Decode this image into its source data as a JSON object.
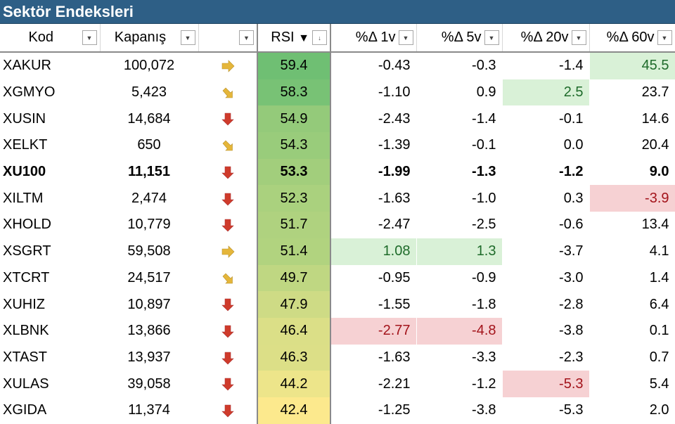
{
  "title": "Sektör Endeksleri",
  "headers": {
    "kod": "Kod",
    "kapanis": "Kapanış",
    "trend": "",
    "rsi": "RSI",
    "d1": "%Δ 1v",
    "d5": "%Δ 5v",
    "d20": "%Δ 20v",
    "d60": "%Δ 60v"
  },
  "icons": {
    "dropdown": "chevron-down-icon",
    "sort_desc": "sort-descending-icon",
    "trend_down": "arrow-down-icon",
    "trend_right": "arrow-right-icon",
    "trend_down_right": "arrow-down-right-icon"
  },
  "colors": {
    "header_bg": "#2e5f86",
    "positive_bg": "#d9f1d7",
    "positive_text": "#1e6b2a",
    "negative_bg": "#f6d1d3",
    "negative_text": "#a3141b",
    "arrow_red": "#cf3b2b",
    "arrow_yellow": "#e5b63a",
    "rsi_high": "#6fbf73",
    "rsi_low": "#fce98d"
  },
  "rows": [
    {
      "kod": "XAKUR",
      "kapanis": "100,072",
      "trend": "right",
      "rsi": "59.4",
      "d1": "-0.43",
      "d5": "-0.3",
      "d20": "-1.4",
      "d60": "45.5",
      "hl": {
        "d60": "pos"
      }
    },
    {
      "kod": "XGMYO",
      "kapanis": "5,423",
      "trend": "down-right",
      "rsi": "58.3",
      "d1": "-1.10",
      "d5": "0.9",
      "d20": "2.5",
      "d60": "23.7",
      "hl": {
        "d20": "pos"
      }
    },
    {
      "kod": "XUSIN",
      "kapanis": "14,684",
      "trend": "down",
      "rsi": "54.9",
      "d1": "-2.43",
      "d5": "-1.4",
      "d20": "-0.1",
      "d60": "14.6",
      "hl": {}
    },
    {
      "kod": "XELKT",
      "kapanis": "650",
      "trend": "down-right",
      "rsi": "54.3",
      "d1": "-1.39",
      "d5": "-0.1",
      "d20": "0.0",
      "d60": "20.4",
      "hl": {}
    },
    {
      "kod": "XU100",
      "kapanis": "11,151",
      "trend": "down",
      "rsi": "53.3",
      "d1": "-1.99",
      "d5": "-1.3",
      "d20": "-1.2",
      "d60": "9.0",
      "hl": {},
      "bold": true
    },
    {
      "kod": "XILTM",
      "kapanis": "2,474",
      "trend": "down",
      "rsi": "52.3",
      "d1": "-1.63",
      "d5": "-1.0",
      "d20": "0.3",
      "d60": "-3.9",
      "hl": {
        "d60": "neg"
      }
    },
    {
      "kod": "XHOLD",
      "kapanis": "10,779",
      "trend": "down",
      "rsi": "51.7",
      "d1": "-2.47",
      "d5": "-2.5",
      "d20": "-0.6",
      "d60": "13.4",
      "hl": {}
    },
    {
      "kod": "XSGRT",
      "kapanis": "59,508",
      "trend": "right",
      "rsi": "51.4",
      "d1": "1.08",
      "d5": "1.3",
      "d20": "-3.7",
      "d60": "4.1",
      "hl": {
        "d1": "pos",
        "d5": "pos"
      }
    },
    {
      "kod": "XTCRT",
      "kapanis": "24,517",
      "trend": "down-right",
      "rsi": "49.7",
      "d1": "-0.95",
      "d5": "-0.9",
      "d20": "-3.0",
      "d60": "1.4",
      "hl": {}
    },
    {
      "kod": "XUHIZ",
      "kapanis": "10,897",
      "trend": "down",
      "rsi": "47.9",
      "d1": "-1.55",
      "d5": "-1.8",
      "d20": "-2.8",
      "d60": "6.4",
      "hl": {}
    },
    {
      "kod": "XLBNK",
      "kapanis": "13,866",
      "trend": "down",
      "rsi": "46.4",
      "d1": "-2.77",
      "d5": "-4.8",
      "d20": "-3.8",
      "d60": "0.1",
      "hl": {
        "d1": "neg",
        "d5": "neg"
      }
    },
    {
      "kod": "XTAST",
      "kapanis": "13,937",
      "trend": "down",
      "rsi": "46.3",
      "d1": "-1.63",
      "d5": "-3.3",
      "d20": "-2.3",
      "d60": "0.7",
      "hl": {}
    },
    {
      "kod": "XULAS",
      "kapanis": "39,058",
      "trend": "down",
      "rsi": "44.2",
      "d1": "-2.21",
      "d5": "-1.2",
      "d20": "-5.3",
      "d60": "5.4",
      "hl": {
        "d20": "neg"
      }
    },
    {
      "kod": "XGIDA",
      "kapanis": "11,374",
      "trend": "down",
      "rsi": "42.4",
      "d1": "-1.25",
      "d5": "-3.8",
      "d20": "-5.3",
      "d60": "2.0",
      "hl": {}
    }
  ]
}
